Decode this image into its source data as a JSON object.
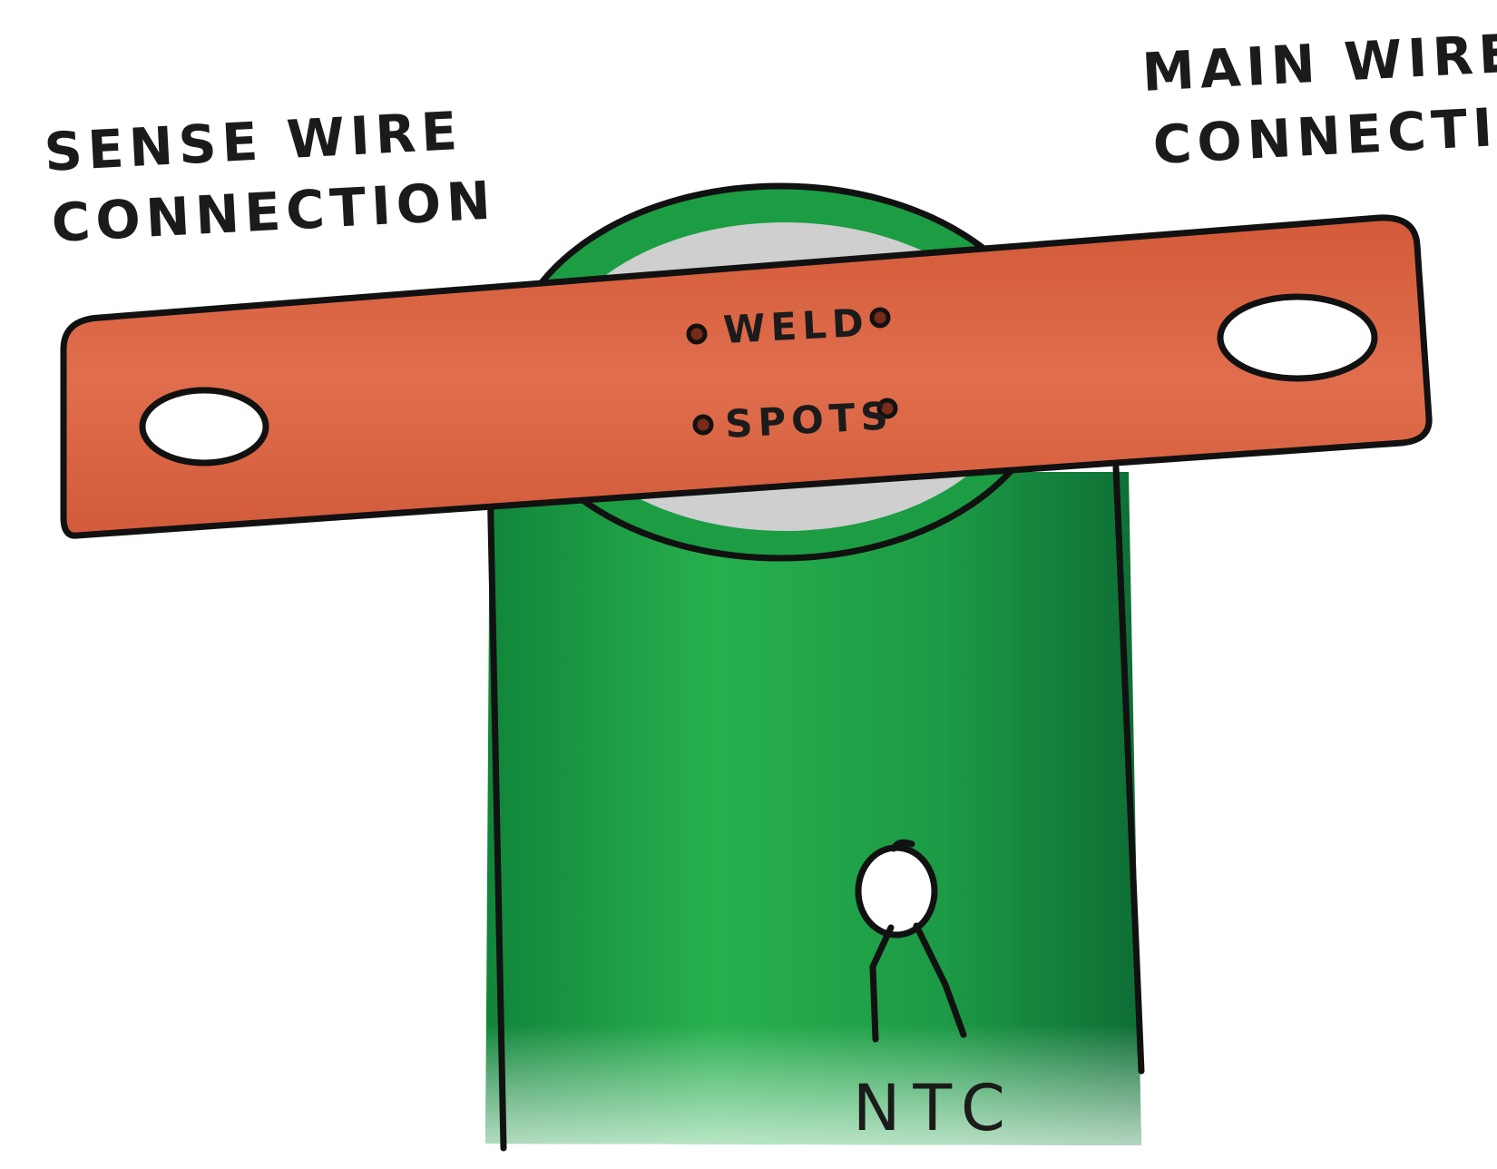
{
  "labels": {
    "sense_wire_line1": "SENSE WIRE",
    "sense_wire_line2": "CONNECTION",
    "main_wire_line1": "MAIN WIRE",
    "main_wire_line2": "CONNECTION",
    "weld": "WELD",
    "spots": "SPOTS",
    "ntc": "NTC"
  },
  "colors": {
    "busbar": "#d9623f",
    "busbar_dark": "#c24a2c",
    "cell_body": "#1fa447",
    "cell_body_dark": "#0f7a33",
    "cell_top": "#c9c9c9",
    "ink": "#111111"
  }
}
